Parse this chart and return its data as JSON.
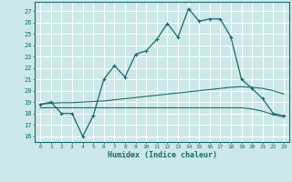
{
  "xlabel": "Humidex (Indice chaleur)",
  "xlim": [
    -0.5,
    23.5
  ],
  "ylim": [
    15.5,
    27.8
  ],
  "yticks": [
    16,
    17,
    18,
    19,
    20,
    21,
    22,
    23,
    24,
    25,
    26,
    27
  ],
  "xticks": [
    0,
    1,
    2,
    3,
    4,
    5,
    6,
    7,
    8,
    9,
    10,
    11,
    12,
    13,
    14,
    15,
    16,
    17,
    18,
    19,
    20,
    21,
    22,
    23
  ],
  "bg_color": "#cce8e8",
  "grid_color": "#ffffff",
  "line_color": "#1a6b6b",
  "line1_x": [
    0,
    1,
    2,
    3,
    4,
    5,
    6,
    7,
    8,
    9,
    10,
    11,
    12,
    13,
    14,
    15,
    16,
    17,
    18,
    19,
    20,
    21,
    22,
    23
  ],
  "line1_y": [
    18.8,
    19.0,
    18.0,
    18.0,
    16.0,
    17.8,
    21.0,
    22.2,
    21.2,
    23.2,
    23.5,
    24.5,
    25.9,
    24.7,
    27.2,
    26.1,
    26.3,
    26.3,
    24.7,
    21.0,
    20.2,
    19.3,
    18.0,
    17.8
  ],
  "line2_x": [
    0,
    1,
    2,
    3,
    4,
    5,
    6,
    7,
    8,
    9,
    10,
    11,
    12,
    13,
    14,
    15,
    16,
    17,
    18,
    19,
    20,
    21,
    22,
    23
  ],
  "line2_y": [
    18.8,
    18.9,
    18.95,
    18.95,
    19.0,
    19.05,
    19.1,
    19.2,
    19.3,
    19.4,
    19.5,
    19.6,
    19.7,
    19.8,
    19.9,
    20.0,
    20.1,
    20.2,
    20.3,
    20.35,
    20.3,
    20.2,
    20.0,
    19.7
  ],
  "line3_x": [
    0,
    1,
    2,
    3,
    4,
    5,
    6,
    7,
    8,
    9,
    10,
    11,
    12,
    13,
    14,
    15,
    16,
    17,
    18,
    19,
    20,
    21,
    22,
    23
  ],
  "line3_y": [
    18.5,
    18.5,
    18.5,
    18.5,
    18.5,
    18.5,
    18.5,
    18.5,
    18.5,
    18.5,
    18.5,
    18.5,
    18.5,
    18.5,
    18.5,
    18.5,
    18.5,
    18.5,
    18.5,
    18.5,
    18.4,
    18.2,
    17.9,
    17.7
  ]
}
